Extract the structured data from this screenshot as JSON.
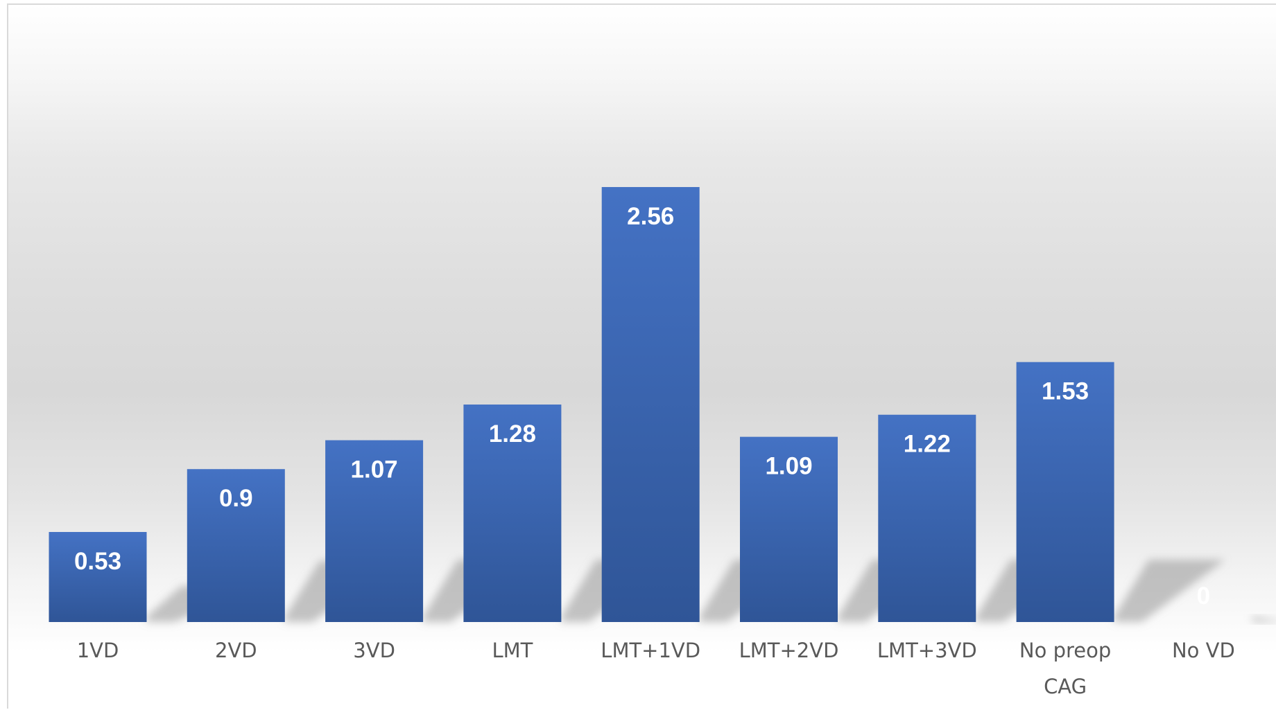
{
  "chart_data": {
    "type": "bar",
    "categories": [
      "1VD",
      "2VD",
      "3VD",
      "LMT",
      "LMT+1VD",
      "LMT+2VD",
      "LMT+3VD",
      "No preop CAG",
      "No VD"
    ],
    "category_lines": [
      [
        "1VD"
      ],
      [
        "2VD"
      ],
      [
        "3VD"
      ],
      [
        "LMT"
      ],
      [
        "LMT+1VD"
      ],
      [
        "LMT+2VD"
      ],
      [
        "LMT+3VD"
      ],
      [
        "No preop",
        "CAG"
      ],
      [
        "No VD"
      ]
    ],
    "values": [
      0.53,
      0.9,
      1.07,
      1.28,
      2.56,
      1.09,
      1.22,
      1.53,
      0
    ],
    "data_labels": [
      "0.53",
      "0.9",
      "1.07",
      "1.28",
      "2.56",
      "1.09",
      "1.22",
      "1.53",
      "0"
    ],
    "title": "",
    "xlabel": "",
    "ylabel": "",
    "ylim": [
      0,
      3.0
    ],
    "grid": false,
    "legend": "none",
    "colors": {
      "bar_top": "#4472c4",
      "bar_bottom": "#2f5597",
      "data_label": "#ffffff",
      "category_label": "#595959",
      "plot_border": "#d9d9d9"
    }
  }
}
